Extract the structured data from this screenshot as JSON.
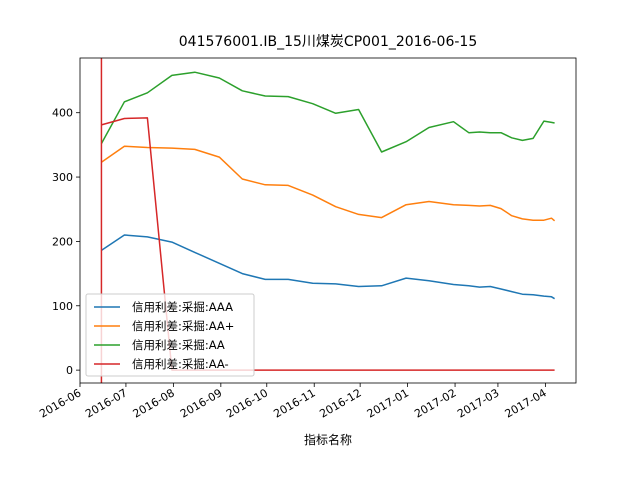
{
  "chart_data": {
    "type": "line",
    "title": "041576001.IB_15川煤炭CP001_2016-06-15",
    "xlabel": "指标名称",
    "ylabel": "",
    "x_axis_type": "date",
    "xlim": [
      "2016-06-01",
      "2017-04-21"
    ],
    "ylim": [
      -20,
      485
    ],
    "x_ticks": [
      "2016-06-01",
      "2016-07-01",
      "2016-08-01",
      "2016-09-01",
      "2016-10-01",
      "2016-11-01",
      "2016-12-01",
      "2017-01-01",
      "2017-02-01",
      "2017-03-01",
      "2017-04-01"
    ],
    "x_tick_labels": [
      "2016-06",
      "2016-07",
      "2016-08",
      "2016-09",
      "2016-10",
      "2016-11",
      "2016-12",
      "2017-01",
      "2017-02",
      "2017-03",
      "2017-04"
    ],
    "y_ticks": [
      0,
      100,
      200,
      300,
      400
    ],
    "y_tick_labels": [
      "0",
      "100",
      "200",
      "300",
      "400"
    ],
    "grid": false,
    "legend_position": "lower-left",
    "vertical_line": {
      "x": "2016-06-15",
      "color": "#d62728"
    },
    "series": [
      {
        "name": "信用利差:采掘:AAA",
        "color": "#1f77b4",
        "points": [
          [
            "2016-06-15",
            186
          ],
          [
            "2016-06-30",
            210
          ],
          [
            "2016-07-15",
            207
          ],
          [
            "2016-07-31",
            199
          ],
          [
            "2016-08-15",
            183
          ],
          [
            "2016-08-31",
            166
          ],
          [
            "2016-09-15",
            150
          ],
          [
            "2016-09-30",
            141
          ],
          [
            "2016-10-15",
            141
          ],
          [
            "2016-10-31",
            135
          ],
          [
            "2016-11-15",
            134
          ],
          [
            "2016-11-30",
            130
          ],
          [
            "2016-12-15",
            131
          ],
          [
            "2016-12-31",
            143
          ],
          [
            "2017-01-15",
            139
          ],
          [
            "2017-01-31",
            133
          ],
          [
            "2017-02-10",
            131
          ],
          [
            "2017-02-17",
            129
          ],
          [
            "2017-02-24",
            130
          ],
          [
            "2017-03-03",
            126
          ],
          [
            "2017-03-10",
            122
          ],
          [
            "2017-03-17",
            118
          ],
          [
            "2017-03-24",
            117
          ],
          [
            "2017-03-31",
            115
          ],
          [
            "2017-04-05",
            114
          ],
          [
            "2017-04-07",
            111
          ]
        ]
      },
      {
        "name": "信用利差:采掘:AA+",
        "color": "#ff7f0e",
        "points": [
          [
            "2016-06-15",
            323
          ],
          [
            "2016-06-30",
            348
          ],
          [
            "2016-07-15",
            346
          ],
          [
            "2016-07-31",
            345
          ],
          [
            "2016-08-15",
            343
          ],
          [
            "2016-08-31",
            331
          ],
          [
            "2016-09-15",
            297
          ],
          [
            "2016-09-30",
            288
          ],
          [
            "2016-10-15",
            287
          ],
          [
            "2016-10-31",
            272
          ],
          [
            "2016-11-15",
            254
          ],
          [
            "2016-11-30",
            242
          ],
          [
            "2016-12-15",
            237
          ],
          [
            "2016-12-31",
            257
          ],
          [
            "2017-01-15",
            262
          ],
          [
            "2017-01-31",
            257
          ],
          [
            "2017-02-10",
            256
          ],
          [
            "2017-02-17",
            255
          ],
          [
            "2017-02-24",
            256
          ],
          [
            "2017-03-03",
            251
          ],
          [
            "2017-03-10",
            240
          ],
          [
            "2017-03-17",
            235
          ],
          [
            "2017-03-24",
            233
          ],
          [
            "2017-03-31",
            233
          ],
          [
            "2017-04-05",
            236
          ],
          [
            "2017-04-07",
            232
          ]
        ]
      },
      {
        "name": "信用利差:采掘:AA",
        "color": "#2ca02c",
        "points": [
          [
            "2016-06-15",
            352
          ],
          [
            "2016-06-30",
            417
          ],
          [
            "2016-07-15",
            431
          ],
          [
            "2016-07-31",
            458
          ],
          [
            "2016-08-15",
            463
          ],
          [
            "2016-08-31",
            454
          ],
          [
            "2016-09-15",
            434
          ],
          [
            "2016-09-30",
            426
          ],
          [
            "2016-10-15",
            425
          ],
          [
            "2016-10-31",
            414
          ],
          [
            "2016-11-15",
            399
          ],
          [
            "2016-11-30",
            405
          ],
          [
            "2016-12-15",
            339
          ],
          [
            "2016-12-31",
            355
          ],
          [
            "2017-01-15",
            377
          ],
          [
            "2017-01-31",
            386
          ],
          [
            "2017-02-10",
            369
          ],
          [
            "2017-02-17",
            370
          ],
          [
            "2017-02-24",
            369
          ],
          [
            "2017-03-03",
            369
          ],
          [
            "2017-03-10",
            361
          ],
          [
            "2017-03-17",
            357
          ],
          [
            "2017-03-24",
            360
          ],
          [
            "2017-03-31",
            387
          ],
          [
            "2017-04-05",
            385
          ],
          [
            "2017-04-07",
            384
          ]
        ]
      },
      {
        "name": "信用利差:采掘:AA-",
        "color": "#d62728",
        "points": [
          [
            "2016-06-15",
            381
          ],
          [
            "2016-06-30",
            391
          ],
          [
            "2016-07-15",
            392
          ],
          [
            "2016-07-31",
            0
          ],
          [
            "2016-08-15",
            0
          ],
          [
            "2016-09-15",
            0
          ],
          [
            "2016-10-15",
            0
          ],
          [
            "2016-11-15",
            0
          ],
          [
            "2016-12-15",
            0
          ],
          [
            "2017-01-15",
            0
          ],
          [
            "2017-02-15",
            0
          ],
          [
            "2017-03-15",
            0
          ],
          [
            "2017-04-07",
            0
          ]
        ]
      }
    ]
  }
}
